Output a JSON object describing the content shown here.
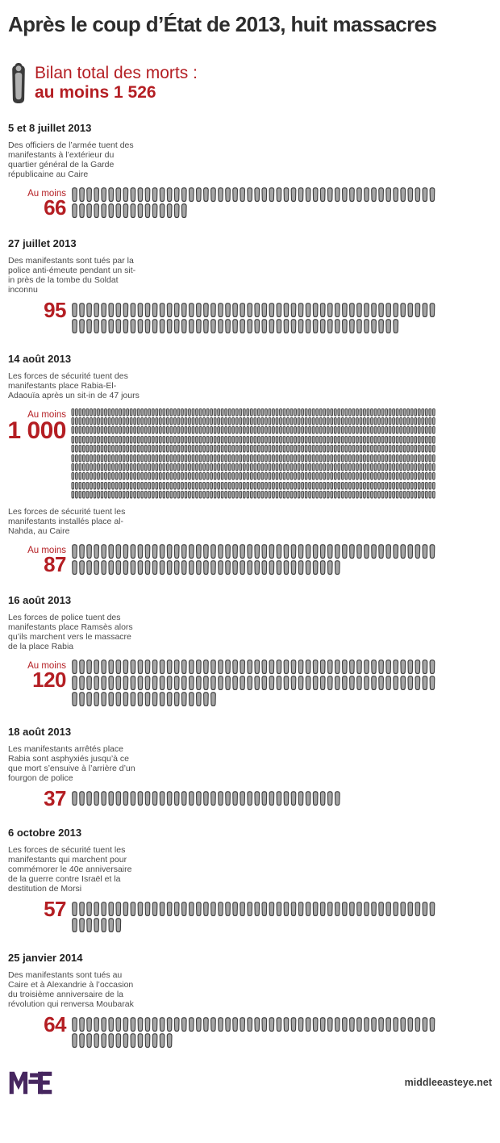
{
  "title": "Après le coup d’État de 2013, huit massacres",
  "total": {
    "label": "Bilan total des morts :",
    "value": "au moins 1 526"
  },
  "colors": {
    "accent_red": "#b41e23",
    "title_color": "#2d2d2d",
    "body_text": "#4a4a4a",
    "icon_fill": "#a6a6a6",
    "icon_stroke": "#3d3d3d",
    "brand_purple": "#46265f"
  },
  "icons": {
    "header_icon": "body-bag-icon",
    "unit_icon": "coffin-icon"
  },
  "sections": [
    {
      "date": "5 et 8 juillet 2013",
      "description": "Des officiers de l’armée tuent des manifestants à l’extérieur du quartier général de la Garde républicaine au Caire",
      "qualifier": "Au moins",
      "value": "66",
      "count": 66,
      "per_row": 50,
      "icon_size": "normal"
    },
    {
      "date": "27 juillet 2013",
      "description": "Des manifestants sont tués par la police anti-émeute pendant un sit-in près de la tombe du Soldat inconnu",
      "qualifier": "",
      "value": "95",
      "count": 95,
      "per_row": 50,
      "icon_size": "normal"
    },
    {
      "date": "14 août 2013",
      "description": "Les forces de sécurité tuent des manifestants place Rabia-El-Adaouïa après un sit-in de 47 jours",
      "qualifier": "Au moins",
      "value": "1 000",
      "count": 1000,
      "per_row": 100,
      "icon_size": "small"
    },
    {
      "date": "",
      "description": "Les forces de sécurité tuent les manifestants installés place al-Nahda, au Caire",
      "qualifier": "Au moins",
      "value": "87",
      "count": 87,
      "per_row": 50,
      "icon_size": "normal"
    },
    {
      "date": "16 août 2013",
      "description": "Les forces de police tuent des manifestants place Ramsès alors qu’ils marchent vers le massacre de la place Rabia",
      "qualifier": "Au moins",
      "value": "120",
      "count": 120,
      "per_row": 50,
      "icon_size": "normal"
    },
    {
      "date": "18 août 2013",
      "description": "Les manifestants arrêtés place Rabia sont asphyxiés jusqu’à ce que mort s’ensuive à l’arrière d’un fourgon de police",
      "qualifier": "",
      "value": "37",
      "count": 37,
      "per_row": 50,
      "icon_size": "normal"
    },
    {
      "date": "6 octobre 2013",
      "description": "Les forces de sécurité tuent les manifestants qui marchent pour commémorer le 40e anniversaire de la guerre contre Israël et la destitution de Morsi",
      "qualifier": "",
      "value": "57",
      "count": 57,
      "per_row": 50,
      "icon_size": "normal"
    },
    {
      "date": "25 janvier 2014",
      "description": "Des manifestants sont tués au Caire et à Alexandrie à l’occasion du troisième anniversaire de la révolution qui renversa Moubarak",
      "qualifier": "",
      "value": "64",
      "count": 64,
      "per_row": 50,
      "icon_size": "normal"
    }
  ],
  "footer": {
    "logo": "MEE",
    "site": "middleeasteye.net"
  },
  "chart_data": {
    "type": "bar",
    "variant": "pictogram-unit-chart",
    "unit_icon": "coffin",
    "unit_value": 1,
    "title": "Après le coup d’État de 2013, huit massacres",
    "total_label": "Bilan total des morts : au moins 1 526",
    "total": 1526,
    "categories": [
      "5 et 8 juillet 2013 — quartier général de la Garde républicaine, Le Caire",
      "27 juillet 2013 — tombe du Soldat inconnu",
      "14 août 2013 — place Rabia-El-Adaouïa",
      "14 août 2013 — place al-Nahda, Le Caire",
      "16 août 2013 — place Ramsès",
      "18 août 2013 — fourgon de police",
      "6 octobre 2013 — marche du 40e anniversaire",
      "25 janvier 2014 — Le Caire et Alexandrie"
    ],
    "values": [
      66,
      95,
      1000,
      87,
      120,
      37,
      57,
      64
    ],
    "qualifiers": [
      "Au moins",
      "",
      "Au moins",
      "Au moins",
      "Au moins",
      "",
      "",
      ""
    ],
    "icons_per_row": [
      50,
      50,
      100,
      50,
      50,
      50,
      50,
      50
    ],
    "legend_position": "none",
    "grid": false
  }
}
